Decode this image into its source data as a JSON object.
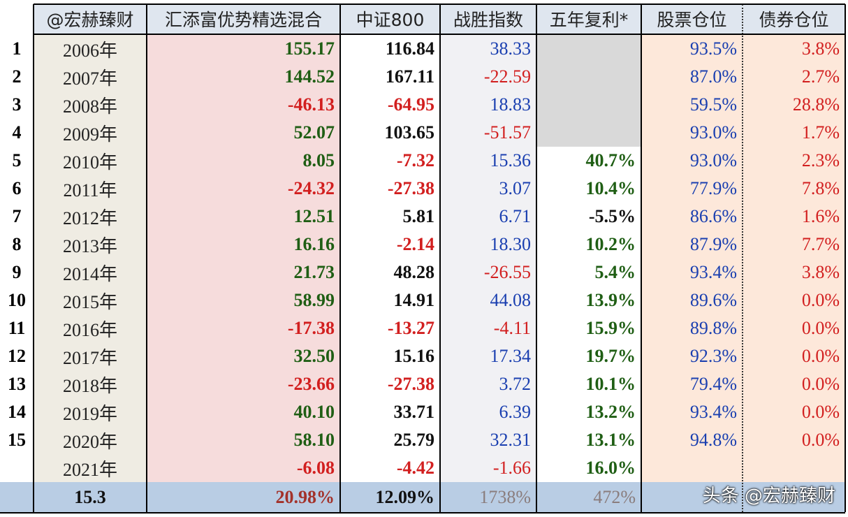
{
  "header": {
    "columns": [
      "@宏赫臻财",
      "汇添富优势精选混合",
      "中证800",
      "战胜指数",
      "五年复利*",
      "股票仓位",
      "债券仓位"
    ]
  },
  "table": {
    "rows": [
      [
        "1",
        "2006年",
        "155.17",
        "116.84",
        "38.33",
        null,
        "93.5%",
        "3.8%"
      ],
      [
        "2",
        "2007年",
        "144.52",
        "167.11",
        "-22.59",
        null,
        "87.0%",
        "2.7%"
      ],
      [
        "3",
        "2008年",
        "-46.13",
        "-64.95",
        "18.83",
        null,
        "59.5%",
        "28.8%"
      ],
      [
        "4",
        "2009年",
        "52.07",
        "103.65",
        "-51.57",
        null,
        "93.0%",
        "1.7%"
      ],
      [
        "5",
        "2010年",
        "8.05",
        "-7.32",
        "15.36",
        "40.7%",
        "93.0%",
        "2.3%"
      ],
      [
        "6",
        "2011年",
        "-24.32",
        "-27.38",
        "3.07",
        "10.4%",
        "77.9%",
        "7.8%"
      ],
      [
        "7",
        "2012年",
        "12.51",
        "5.81",
        "6.71",
        "-5.5%",
        "86.6%",
        "1.6%"
      ],
      [
        "8",
        "2013年",
        "16.16",
        "-2.14",
        "18.30",
        "10.2%",
        "87.9%",
        "7.7%"
      ],
      [
        "9",
        "2014年",
        "21.73",
        "48.28",
        "-26.55",
        "5.4%",
        "93.4%",
        "3.8%"
      ],
      [
        "10",
        "2015年",
        "58.99",
        "14.91",
        "44.08",
        "13.9%",
        "89.6%",
        "0.0%"
      ],
      [
        "11",
        "2016年",
        "-17.38",
        "-13.27",
        "-4.11",
        "15.9%",
        "89.8%",
        "0.0%"
      ],
      [
        "12",
        "2017年",
        "32.50",
        "15.16",
        "17.34",
        "19.7%",
        "92.3%",
        "0.0%"
      ],
      [
        "13",
        "2018年",
        "-23.66",
        "-27.38",
        "3.72",
        "10.1%",
        "79.4%",
        "0.0%"
      ],
      [
        "14",
        "2019年",
        "40.10",
        "33.71",
        "6.39",
        "13.2%",
        "93.4%",
        "0.0%"
      ],
      [
        "15",
        "2020年",
        "58.10",
        "25.79",
        "32.31",
        "13.1%",
        "94.8%",
        "0.0%"
      ],
      [
        null,
        "2021年",
        "-6.08",
        "-4.42",
        "-1.66",
        "16.0%",
        null,
        null
      ]
    ],
    "summary": [
      "15.3",
      "20.98%",
      "12.09%",
      "1738%",
      "472%"
    ]
  },
  "watermark": "头条 @宏赫臻财"
}
